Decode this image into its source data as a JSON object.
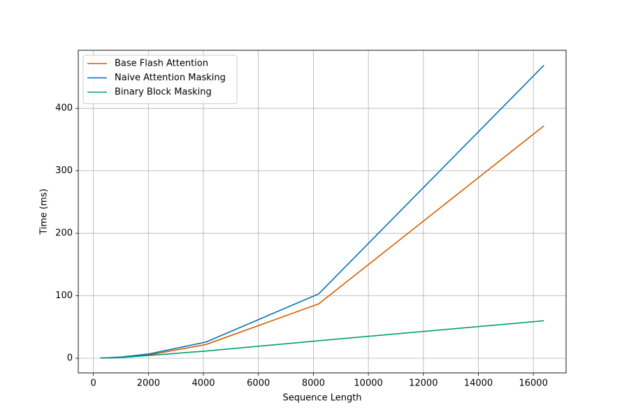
{
  "chart_data": {
    "type": "line",
    "x_label": "Sequence Length",
    "y_label": "Time (ms)",
    "x": [
      256,
      512,
      1024,
      2048,
      4096,
      8192,
      16384
    ],
    "series": [
      {
        "name": "Base Flash Attention",
        "color": "#d55e00",
        "values": [
          0.3,
          0.6,
          1.5,
          5.5,
          22,
          87,
          372
        ]
      },
      {
        "name": "Naive Attention Masking",
        "color": "#0072b2",
        "values": [
          0.4,
          0.8,
          2,
          7,
          26,
          103,
          469
        ]
      },
      {
        "name": "Binary Block Masking",
        "color": "#009e73",
        "values": [
          0.3,
          0.5,
          1.2,
          4.5,
          11.5,
          28,
          60
        ]
      }
    ],
    "xlim": [
      -550,
      17190
    ],
    "ylim": [
      -23.5,
      493
    ],
    "xticks": [
      0,
      2000,
      4000,
      6000,
      8000,
      10000,
      12000,
      14000,
      16000
    ],
    "yticks": [
      0,
      100,
      200,
      300,
      400
    ],
    "grid": true,
    "legend": "upper-left"
  }
}
